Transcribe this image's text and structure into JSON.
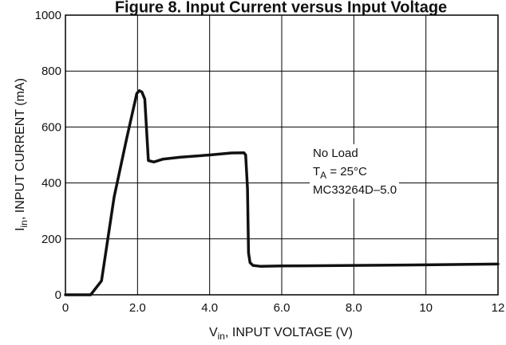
{
  "chart_data": {
    "type": "line",
    "title": "Figure 8. Input Current versus Input Voltage",
    "xlabel": {
      "main": "V",
      "sub": "in",
      "rest": ", INPUT VOLTAGE (V)"
    },
    "ylabel": {
      "main": "I",
      "sub": "in",
      "rest": ", INPUT CURRENT (mA)"
    },
    "xlim": [
      0,
      12
    ],
    "ylim": [
      0,
      1000
    ],
    "x_ticks": [
      0,
      2,
      4,
      6,
      8,
      10,
      12
    ],
    "x_tick_labels": [
      "0",
      "2.0",
      "4.0",
      "6.0",
      "8.0",
      "10",
      "12"
    ],
    "y_ticks": [
      0,
      200,
      400,
      600,
      800,
      1000
    ],
    "y_tick_labels": [
      "0",
      "200",
      "400",
      "600",
      "800",
      "1000"
    ],
    "grid": true,
    "annotations": {
      "line1": "No Load",
      "line2_main": "T",
      "line2_sub": "A",
      "line2_rest": " = 25°C",
      "line3": "MC33264D–5.0"
    },
    "series": [
      {
        "x": [
          0,
          0.7,
          1.0,
          1.35,
          1.7,
          1.98,
          2.05,
          2.12,
          2.2,
          2.3,
          2.45,
          2.7,
          3.2,
          4.0,
          4.6,
          4.95,
          5.0,
          5.05,
          5.08,
          5.12,
          5.2,
          5.4,
          6.0,
          8.0,
          10.0,
          12.0
        ],
        "y": [
          0,
          0,
          50,
          350,
          560,
          720,
          730,
          725,
          700,
          480,
          475,
          485,
          492,
          500,
          507,
          508,
          500,
          380,
          150,
          115,
          105,
          102,
          103,
          105,
          107,
          110
        ]
      }
    ]
  }
}
